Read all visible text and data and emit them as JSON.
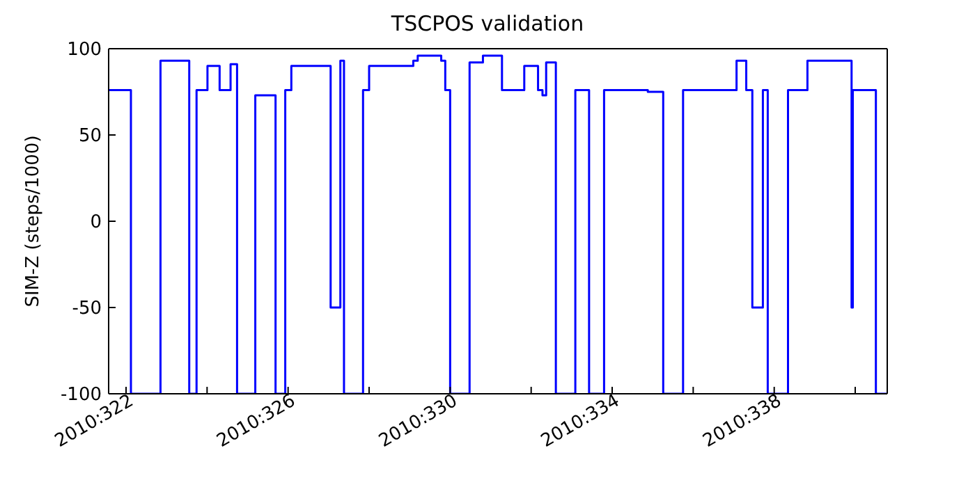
{
  "chart_data": {
    "type": "step",
    "title": "TSCPOS validation",
    "ylabel": "SIM-Z (steps/1000)",
    "x": [
      "2010-11-17T13:41",
      "2010-11-18T02:53",
      "2010-11-18T20:24",
      "2010-11-19T13:26",
      "2010-11-19T17:46",
      "2010-11-20T00:14",
      "2010-11-20T07:26",
      "2010-11-20T13:55",
      "2010-11-20T17:46",
      "2010-11-21T04:34",
      "2010-11-21T16:34",
      "2010-11-21T22:19",
      "2010-11-22T01:55",
      "2010-11-23T01:12",
      "2010-11-23T06:58",
      "2010-11-23T09:07",
      "2010-11-23T20:24",
      "2010-11-24T00:00",
      "2010-11-25T02:10",
      "2010-11-25T04:48",
      "2010-11-25T18:43",
      "2010-11-25T21:07",
      "2010-11-26T00:00",
      "2010-11-26T11:31",
      "2010-11-26T19:26",
      "2010-11-27T06:43",
      "2010-11-27T19:55",
      "2010-11-28T04:05",
      "2010-11-28T06:43",
      "2010-11-28T08:53",
      "2010-11-28T14:38",
      "2010-11-29T02:10",
      "2010-11-29T10:19",
      "2010-11-29T19:12",
      "2010-11-30T21:07",
      "2010-12-01T06:14",
      "2010-12-01T18:00",
      "2010-12-03T01:41",
      "2010-12-03T07:26",
      "2010-12-03T11:02",
      "2010-12-03T17:17",
      "2010-12-03T20:10",
      "2010-12-04T08:10",
      "2010-12-04T19:41",
      "2010-12-05T21:50",
      "2010-12-05T22:34",
      "2010-12-06T12:14",
      "2010-12-06T18:58"
    ],
    "series": [
      {
        "color": "#0000ff",
        "values": [
          76,
          -100,
          93,
          -100,
          76,
          90,
          76,
          91,
          -100,
          73,
          -100,
          76,
          90,
          -50,
          93,
          -100,
          76,
          90,
          93,
          96,
          93,
          76,
          -100,
          92,
          96,
          76,
          90,
          76,
          73,
          92,
          -100,
          76,
          -100,
          76,
          75,
          -100,
          76,
          93,
          76,
          -50,
          76,
          -100,
          76,
          93,
          -50,
          76,
          -100,
          -100
        ]
      }
    ],
    "xlim": [
      "2010-11-17T13:41",
      "2010-12-06T18:58"
    ],
    "xticks": [
      {
        "value": "2010-11-18",
        "label": "2010:322"
      },
      {
        "value": "2010-11-20",
        "label": null
      },
      {
        "value": "2010-11-22",
        "label": "2010:326"
      },
      {
        "value": "2010-11-24",
        "label": null
      },
      {
        "value": "2010-11-26",
        "label": "2010:330"
      },
      {
        "value": "2010-11-28",
        "label": null
      },
      {
        "value": "2010-11-30",
        "label": "2010:334"
      },
      {
        "value": "2010-12-02",
        "label": null
      },
      {
        "value": "2010-12-04",
        "label": "2010:338"
      },
      {
        "value": "2010-12-06",
        "label": null
      }
    ],
    "ylim": [
      -100,
      100
    ],
    "yticks": [
      -100,
      -50,
      0,
      50,
      100
    ],
    "grid": false,
    "legend": false
  }
}
